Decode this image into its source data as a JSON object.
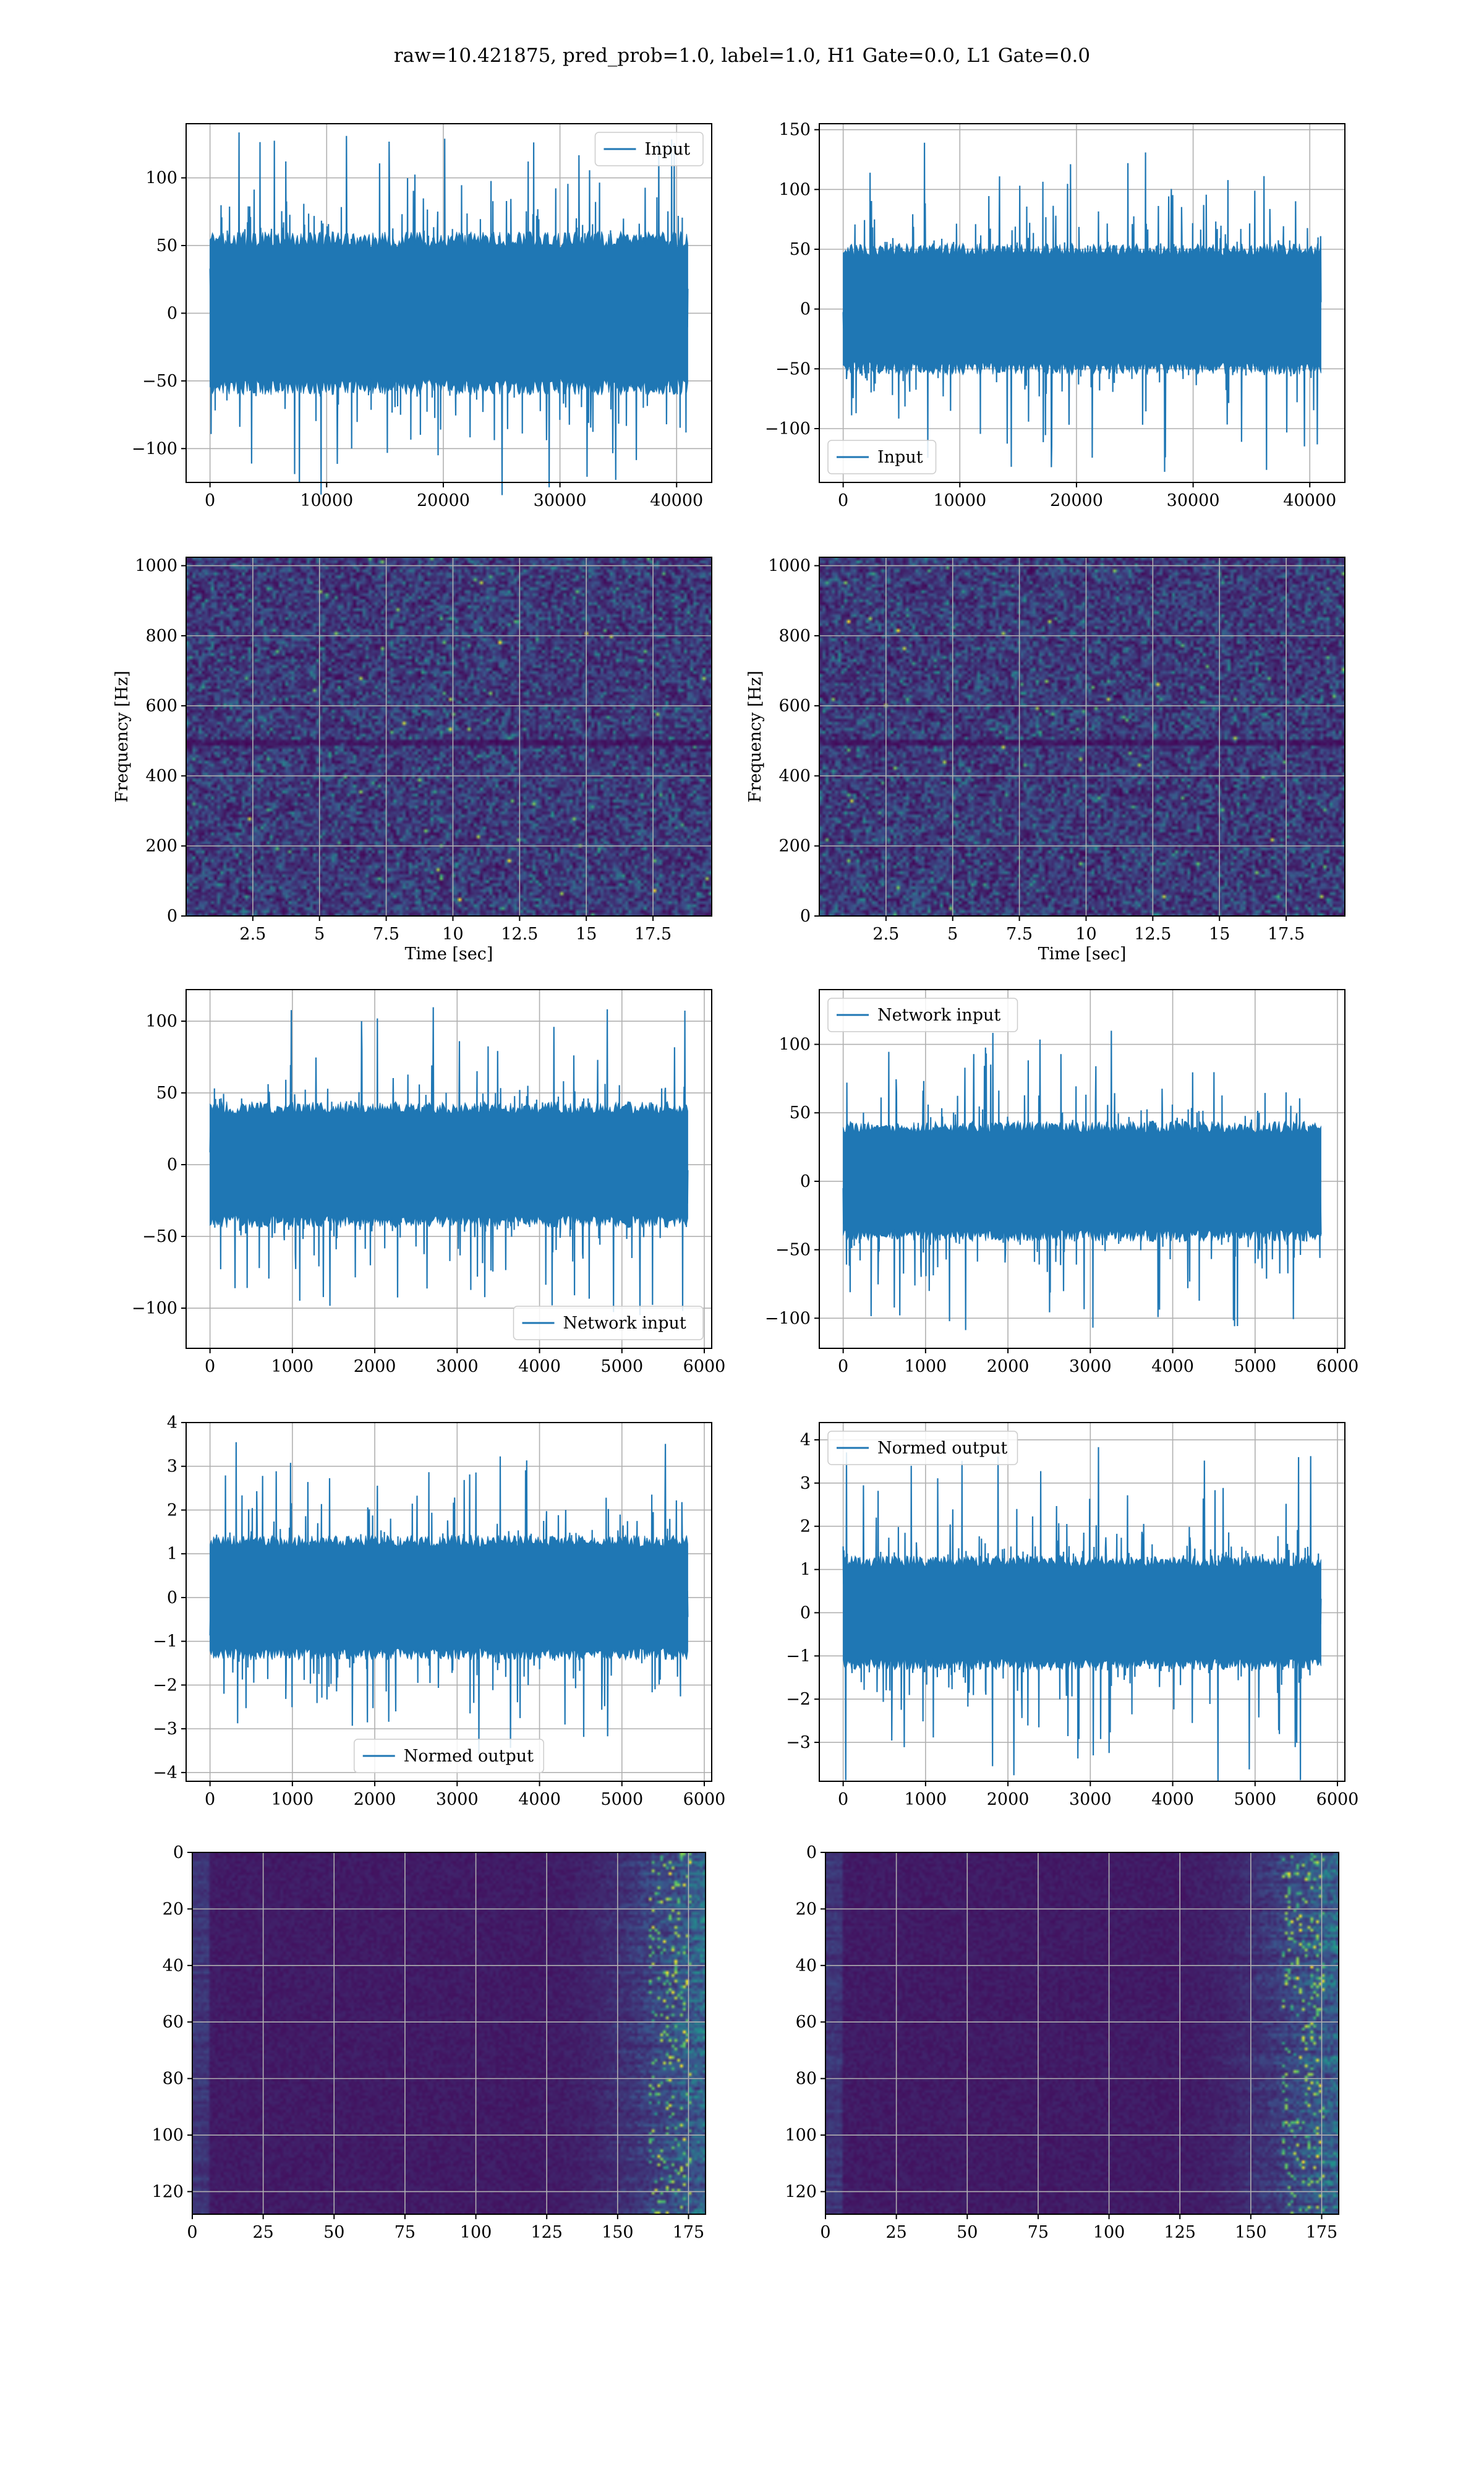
{
  "figure": {
    "title": "raw=10.421875, pred_prob=1.0, label=1.0, H1 Gate=0.0, L1 Gate=0.0"
  },
  "colors": {
    "series": "#1f77b4",
    "grid": "#b0b0b0",
    "viridis_low": "#440154",
    "viridis_mid": "#21918c",
    "viridis_high": "#fde725"
  },
  "chart_data": [
    {
      "id": "h1-input",
      "type": "line",
      "x_range": [
        0,
        40960
      ],
      "xlim": [
        -2048,
        43008
      ],
      "ylim": [
        -125,
        140
      ],
      "amplitude": 55,
      "peak": 135,
      "xticks": [
        0,
        10000,
        20000,
        30000,
        40000
      ],
      "yticks": [
        -100,
        -50,
        0,
        50,
        100
      ],
      "xlabel": "",
      "ylabel": "",
      "legend": {
        "label": "Input",
        "loc": "top-right"
      },
      "grid": true
    },
    {
      "id": "l1-input",
      "type": "line",
      "x_range": [
        0,
        40960
      ],
      "xlim": [
        -2048,
        43008
      ],
      "ylim": [
        -145,
        155
      ],
      "amplitude": 50,
      "peak": 140,
      "xticks": [
        0,
        10000,
        20000,
        30000,
        40000
      ],
      "yticks": [
        -100,
        -50,
        0,
        50,
        100,
        150
      ],
      "xlabel": "",
      "ylabel": "",
      "legend": {
        "label": "Input",
        "loc": "bottom-left"
      },
      "grid": true
    },
    {
      "id": "h1-spectrogram",
      "type": "heatmap",
      "xlim": [
        0,
        19.7
      ],
      "ylim": [
        0,
        1024
      ],
      "xticks": [
        2.5,
        5.0,
        7.5,
        10.0,
        12.5,
        15.0,
        17.5
      ],
      "yticks": [
        0,
        200,
        400,
        600,
        800,
        1000
      ],
      "xlabel": "Time [sec]",
      "ylabel": "Frequency [Hz]",
      "colormap": "viridis",
      "grid": true
    },
    {
      "id": "l1-spectrogram",
      "type": "heatmap",
      "xlim": [
        0,
        19.7
      ],
      "ylim": [
        0,
        1024
      ],
      "xticks": [
        2.5,
        5.0,
        7.5,
        10.0,
        12.5,
        15.0,
        17.5
      ],
      "yticks": [
        0,
        200,
        400,
        600,
        800,
        1000
      ],
      "xlabel": "Time [sec]",
      "ylabel": "Frequency [Hz]",
      "colormap": "viridis",
      "grid": true
    },
    {
      "id": "h1-network-input",
      "type": "line",
      "x_range": [
        0,
        5800
      ],
      "xlim": [
        -290,
        6090
      ],
      "ylim": [
        -128,
        122
      ],
      "amplitude": 40,
      "peak": 110,
      "xticks": [
        0,
        1000,
        2000,
        3000,
        4000,
        5000,
        6000
      ],
      "yticks": [
        -100,
        -50,
        0,
        50,
        100
      ],
      "xlabel": "",
      "ylabel": "",
      "legend": {
        "label": "Network input",
        "loc": "bottom-right"
      },
      "grid": true
    },
    {
      "id": "l1-network-input",
      "type": "line",
      "x_range": [
        0,
        5800
      ],
      "xlim": [
        -290,
        6090
      ],
      "ylim": [
        -122,
        140
      ],
      "amplitude": 40,
      "peak": 110,
      "xticks": [
        0,
        1000,
        2000,
        3000,
        4000,
        5000,
        6000
      ],
      "yticks": [
        -100,
        -50,
        0,
        50,
        100
      ],
      "xlabel": "",
      "ylabel": "",
      "legend": {
        "label": "Network input",
        "loc": "top-left"
      },
      "grid": true
    },
    {
      "id": "h1-normed-output",
      "type": "line",
      "x_range": [
        0,
        5800
      ],
      "xlim": [
        -290,
        6090
      ],
      "ylim": [
        -4.2,
        4.0
      ],
      "amplitude": 1.3,
      "peak": 3.7,
      "xticks": [
        0,
        1000,
        2000,
        3000,
        4000,
        5000,
        6000
      ],
      "yticks": [
        -4,
        -3,
        -2,
        -1,
        0,
        1,
        2,
        3,
        4
      ],
      "xlabel": "",
      "ylabel": "",
      "legend": {
        "label": "Normed output",
        "loc": "bottom-center"
      },
      "grid": true
    },
    {
      "id": "l1-normed-output",
      "type": "line",
      "x_range": [
        0,
        5800
      ],
      "xlim": [
        -290,
        6090
      ],
      "ylim": [
        -3.9,
        4.4
      ],
      "amplitude": 1.2,
      "peak": 3.9,
      "xticks": [
        0,
        1000,
        2000,
        3000,
        4000,
        5000,
        6000
      ],
      "yticks": [
        -3,
        -2,
        -1,
        0,
        1,
        2,
        3,
        4
      ],
      "xlabel": "",
      "ylabel": "",
      "legend": {
        "label": "Normed output",
        "loc": "top-left"
      },
      "grid": true
    },
    {
      "id": "h1-feature-map",
      "type": "heatmap",
      "xlim": [
        0,
        181
      ],
      "ylim": [
        128,
        0
      ],
      "xticks": [
        0,
        25,
        50,
        75,
        100,
        125,
        150,
        175
      ],
      "yticks": [
        0,
        20,
        40,
        60,
        80,
        100,
        120
      ],
      "xlabel": "",
      "ylabel": "",
      "colormap": "viridis",
      "grid": true
    },
    {
      "id": "l1-feature-map",
      "type": "heatmap",
      "xlim": [
        0,
        181
      ],
      "ylim": [
        128,
        0
      ],
      "xticks": [
        0,
        25,
        50,
        75,
        100,
        125,
        150,
        175
      ],
      "yticks": [
        0,
        20,
        40,
        60,
        80,
        100,
        120
      ],
      "xlabel": "",
      "ylabel": "",
      "colormap": "viridis",
      "grid": true
    }
  ]
}
